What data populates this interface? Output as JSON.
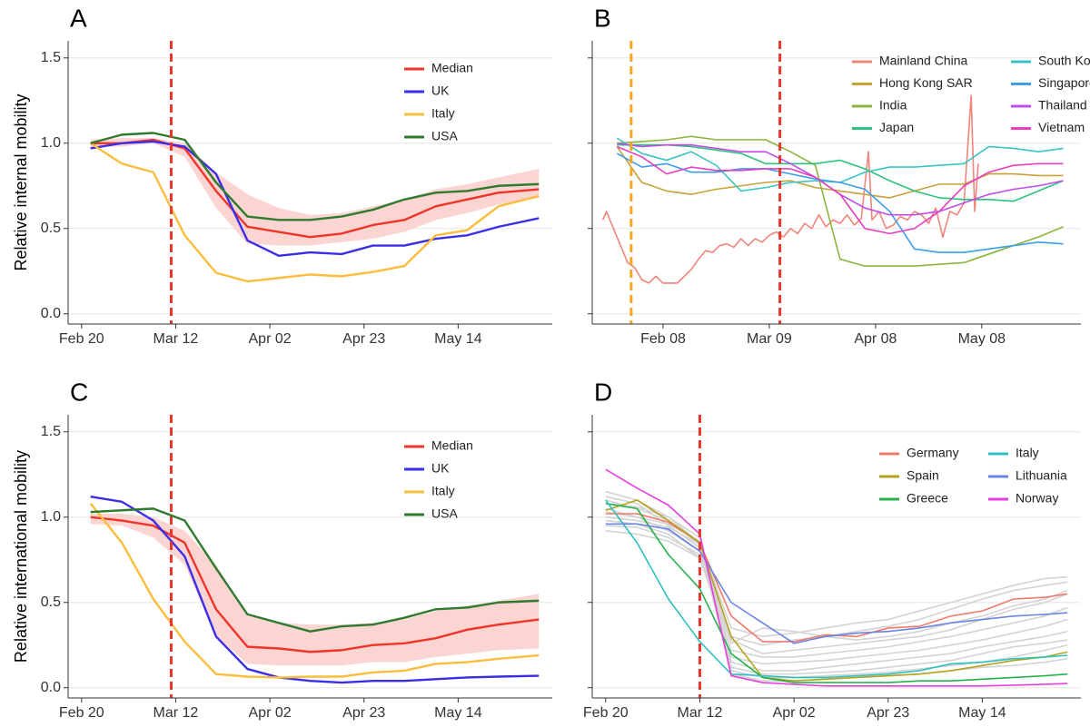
{
  "chart_data": [
    {
      "type": "line",
      "panel_label": "A",
      "ylabel": "Relative internal mobility",
      "legend": "top-right",
      "x": [
        "Feb 22",
        "Feb 29",
        "Mar 07",
        "Mar 14",
        "Mar 21",
        "Mar 28",
        "Apr 04",
        "Apr 11",
        "Apr 18",
        "Apr 25",
        "May 02",
        "May 09",
        "May 16",
        "May 23",
        "Jun 01"
      ],
      "band": {
        "color": "#fbd5d2",
        "lower": [
          0.98,
          0.98,
          1.0,
          0.92,
          0.62,
          0.41,
          0.4,
          0.4,
          0.42,
          0.44,
          0.48,
          0.55,
          0.59,
          0.64,
          0.68
        ],
        "upper": [
          1.02,
          1.03,
          1.03,
          1.0,
          0.83,
          0.7,
          0.62,
          0.58,
          0.59,
          0.63,
          0.67,
          0.73,
          0.76,
          0.8,
          0.85
        ]
      },
      "series": [
        {
          "name": "Median",
          "color": "#f0332b",
          "values": [
            1.0,
            1.0,
            1.02,
            0.97,
            0.72,
            0.51,
            0.48,
            0.45,
            0.47,
            0.52,
            0.55,
            0.63,
            0.67,
            0.71,
            0.73
          ]
        },
        {
          "name": "UK",
          "color": "#3a2ee8",
          "values": [
            0.97,
            1.0,
            1.01,
            0.98,
            0.82,
            0.43,
            0.34,
            0.36,
            0.35,
            0.4,
            0.4,
            0.44,
            0.46,
            0.51,
            0.56
          ]
        },
        {
          "name": "Italy",
          "color": "#fbbd3c",
          "values": [
            1.0,
            0.88,
            0.83,
            0.46,
            0.24,
            0.19,
            0.21,
            0.23,
            0.22,
            0.245,
            0.28,
            0.46,
            0.49,
            0.63,
            0.69
          ]
        },
        {
          "name": "USA",
          "color": "#2f7a2f",
          "values": [
            1.0,
            1.05,
            1.06,
            1.02,
            0.77,
            0.57,
            0.55,
            0.55,
            0.57,
            0.61,
            0.67,
            0.71,
            0.72,
            0.75,
            0.76
          ]
        }
      ],
      "vlines": [
        {
          "x": "Mar 11",
          "color": "#e8372c"
        }
      ],
      "xlim": [
        "Feb 17",
        "Jun 04"
      ],
      "xticks": [
        "Feb 20",
        "Mar 12",
        "Apr 02",
        "Apr 23",
        "May 14"
      ],
      "ylim": [
        -0.06,
        1.6
      ],
      "yticks": [
        {
          "value": 0,
          "label": "0.0"
        },
        0.5,
        {
          "value": 1,
          "label": "1.0"
        },
        1.5
      ],
      "grid": true
    },
    {
      "type": "line",
      "panel_label": "B",
      "legend": "top-right",
      "ytick_labels": false,
      "x": [
        "Jan 26",
        "Feb 02",
        "Feb 09",
        "Feb 16",
        "Feb 23",
        "Mar 01",
        "Mar 08",
        "Mar 15",
        "Mar 22",
        "Mar 29",
        "Apr 05",
        "Apr 12",
        "Apr 19",
        "Apr 26",
        "May 03",
        "May 10",
        "May 17",
        "May 24",
        "May 31"
      ],
      "series": [
        {
          "name": "Mainland China",
          "color": "#f0857a",
          "x": [
            "Jan 22",
            "Jan 23",
            "Jan 25",
            "Jan 27",
            "Jan 29",
            "Jan 31",
            "Feb 02",
            "Feb 04",
            "Feb 06",
            "Feb 08",
            "Feb 10",
            "Feb 12",
            "Feb 14",
            "Feb 16",
            "Feb 18",
            "Feb 20",
            "Feb 22",
            "Feb 24",
            "Feb 26",
            "Feb 28",
            "Mar 01",
            "Mar 03",
            "Mar 05",
            "Mar 07",
            "Mar 09",
            "Mar 11",
            "Mar 13",
            "Mar 15",
            "Mar 17",
            "Mar 19",
            "Mar 21",
            "Mar 23",
            "Mar 25",
            "Mar 27",
            "Mar 29",
            "Mar 31",
            "Apr 02",
            "Apr 04",
            "Apr 06",
            "Apr 07",
            "Apr 09",
            "Apr 11",
            "Apr 13",
            "Apr 15",
            "Apr 17",
            "Apr 19",
            "Apr 21",
            "Apr 23",
            "Apr 25",
            "Apr 27",
            "Apr 29",
            "May 01",
            "May 03",
            "May 05",
            "May 06",
            "May 07"
          ],
          "values": [
            0.55,
            0.6,
            0.5,
            0.4,
            0.3,
            0.27,
            0.2,
            0.18,
            0.22,
            0.18,
            0.18,
            0.18,
            0.22,
            0.26,
            0.32,
            0.37,
            0.36,
            0.4,
            0.41,
            0.39,
            0.44,
            0.4,
            0.44,
            0.42,
            0.46,
            0.48,
            0.45,
            0.5,
            0.47,
            0.53,
            0.5,
            0.58,
            0.51,
            0.55,
            0.53,
            0.58,
            0.52,
            0.56,
            0.95,
            0.55,
            0.6,
            0.5,
            0.52,
            0.57,
            0.55,
            0.6,
            0.58,
            0.53,
            0.62,
            0.45,
            0.6,
            0.58,
            0.65,
            1.28,
            0.6,
            0.88
          ]
        },
        {
          "name": "Hong Kong SAR",
          "color": "#c8a13a",
          "values": [
            0.98,
            0.77,
            0.72,
            0.7,
            0.73,
            0.75,
            0.77,
            0.78,
            0.74,
            0.72,
            0.7,
            0.68,
            0.72,
            0.76,
            0.76,
            0.82,
            0.82,
            0.81,
            0.81
          ]
        },
        {
          "name": "India",
          "color": "#8cb33b",
          "values": [
            1.0,
            1.01,
            1.02,
            1.04,
            1.02,
            1.02,
            1.02,
            0.95,
            0.87,
            0.32,
            0.28,
            0.28,
            0.28,
            0.29,
            0.3,
            0.35,
            0.4,
            0.45,
            0.51
          ]
        },
        {
          "name": "Japan",
          "color": "#2ec27e",
          "values": [
            0.99,
            0.99,
            0.99,
            0.98,
            0.96,
            0.94,
            0.88,
            0.88,
            0.88,
            0.9,
            0.85,
            0.78,
            0.72,
            0.68,
            0.67,
            0.67,
            0.66,
            0.72,
            0.78
          ]
        },
        {
          "name": "South Korea",
          "color": "#3bc4c4",
          "values": [
            1.03,
            0.94,
            0.9,
            0.95,
            0.87,
            0.72,
            0.74,
            0.77,
            0.78,
            0.77,
            0.83,
            0.86,
            0.86,
            0.87,
            0.88,
            0.98,
            0.97,
            0.95,
            0.97
          ]
        },
        {
          "name": "Singapore",
          "color": "#3a9ee8",
          "values": [
            0.94,
            0.86,
            0.88,
            0.83,
            0.83,
            0.85,
            0.85,
            0.82,
            0.79,
            0.77,
            0.73,
            0.6,
            0.38,
            0.36,
            0.36,
            0.38,
            0.4,
            0.42,
            0.41
          ]
        },
        {
          "name": "Thailand",
          "color": "#c04ce8",
          "values": [
            1.0,
            0.98,
            0.99,
            0.99,
            0.97,
            0.95,
            0.95,
            0.88,
            0.8,
            0.7,
            0.62,
            0.58,
            0.58,
            0.6,
            0.65,
            0.7,
            0.73,
            0.75,
            0.78
          ]
        },
        {
          "name": "Vietnam",
          "color": "#e83ec0",
          "values": [
            0.98,
            0.92,
            0.82,
            0.86,
            0.84,
            0.84,
            0.85,
            0.85,
            0.8,
            0.7,
            0.5,
            0.47,
            0.5,
            0.6,
            0.75,
            0.83,
            0.87,
            0.88,
            0.88
          ]
        }
      ],
      "vlines": [
        {
          "x": "Jan 30",
          "color": "#f5a623"
        },
        {
          "x": "Mar 12",
          "color": "#e8372c"
        }
      ],
      "xlim": [
        "Jan 19",
        "Jun 05"
      ],
      "xticks": [
        "Feb 08",
        "Mar 09",
        "Apr 08",
        "May 08"
      ],
      "ylim": [
        -0.06,
        1.6
      ],
      "yticks": [
        0,
        0.5,
        1,
        1.5
      ],
      "grid": true
    },
    {
      "type": "line",
      "panel_label": "C",
      "ylabel": "Relative international mobility",
      "legend": "top-right",
      "x": [
        "Feb 22",
        "Feb 29",
        "Mar 07",
        "Mar 14",
        "Mar 21",
        "Mar 28",
        "Apr 04",
        "Apr 11",
        "Apr 18",
        "Apr 25",
        "May 02",
        "May 09",
        "May 16",
        "May 23",
        "Jun 01"
      ],
      "band": {
        "color": "#fbd5d2",
        "lower": [
          0.96,
          0.95,
          0.88,
          0.72,
          0.3,
          0.14,
          0.13,
          0.13,
          0.13,
          0.15,
          0.15,
          0.18,
          0.2,
          0.22,
          0.23
        ],
        "upper": [
          1.02,
          1.02,
          1.0,
          0.92,
          0.72,
          0.42,
          0.38,
          0.37,
          0.37,
          0.38,
          0.4,
          0.45,
          0.48,
          0.51,
          0.55
        ]
      },
      "series": [
        {
          "name": "Median",
          "color": "#f0332b",
          "values": [
            1.0,
            0.98,
            0.95,
            0.85,
            0.46,
            0.24,
            0.23,
            0.21,
            0.22,
            0.25,
            0.26,
            0.29,
            0.34,
            0.37,
            0.4
          ]
        },
        {
          "name": "UK",
          "color": "#3a2ee8",
          "values": [
            1.12,
            1.09,
            0.98,
            0.77,
            0.3,
            0.11,
            0.06,
            0.04,
            0.03,
            0.04,
            0.04,
            0.05,
            0.06,
            0.065,
            0.07
          ]
        },
        {
          "name": "Italy",
          "color": "#fbbd3c",
          "values": [
            1.08,
            0.85,
            0.52,
            0.27,
            0.08,
            0.065,
            0.06,
            0.065,
            0.065,
            0.09,
            0.1,
            0.14,
            0.15,
            0.17,
            0.19
          ]
        },
        {
          "name": "USA",
          "color": "#2f7a2f",
          "values": [
            1.03,
            1.04,
            1.05,
            0.98,
            0.7,
            0.43,
            0.38,
            0.33,
            0.36,
            0.37,
            0.41,
            0.46,
            0.47,
            0.5,
            0.51
          ]
        }
      ],
      "vlines": [
        {
          "x": "Mar 11",
          "color": "#e8372c"
        }
      ],
      "xlim": [
        "Feb 17",
        "Jun 04"
      ],
      "xticks": [
        "Feb 20",
        "Mar 12",
        "Apr 02",
        "Apr 23",
        "May 14"
      ],
      "ylim": [
        -0.06,
        1.6
      ],
      "yticks": [
        {
          "value": 0,
          "label": "0.0"
        },
        0.5,
        {
          "value": 1,
          "label": "1.0"
        },
        1.5
      ],
      "grid": true
    },
    {
      "type": "line",
      "panel_label": "D",
      "legend": "top-right",
      "ytick_labels": false,
      "x": [
        "Feb 20",
        "Feb 27",
        "Mar 05",
        "Mar 12",
        "Mar 19",
        "Mar 26",
        "Apr 02",
        "Apr 09",
        "Apr 16",
        "Apr 23",
        "Apr 30",
        "May 07",
        "May 14",
        "May 21",
        "May 28",
        "Jun 02"
      ],
      "background_series": {
        "color": "#d3d3d3",
        "lines": [
          [
            1.15,
            1.1,
            1.0,
            0.85,
            0.35,
            0.3,
            0.32,
            0.35,
            0.38,
            0.4,
            0.45,
            0.5,
            0.55,
            0.6,
            0.64,
            0.65
          ],
          [
            1.12,
            1.08,
            0.95,
            0.82,
            0.3,
            0.25,
            0.28,
            0.3,
            0.33,
            0.36,
            0.4,
            0.46,
            0.52,
            0.57,
            0.6,
            0.62
          ],
          [
            1.05,
            1.0,
            0.92,
            0.8,
            0.28,
            0.2,
            0.22,
            0.24,
            0.26,
            0.28,
            0.3,
            0.34,
            0.4,
            0.46,
            0.5,
            0.55
          ],
          [
            0.98,
            0.96,
            0.9,
            0.76,
            0.22,
            0.18,
            0.18,
            0.2,
            0.22,
            0.24,
            0.27,
            0.3,
            0.34,
            0.38,
            0.42,
            0.47
          ],
          [
            0.95,
            0.94,
            0.88,
            0.78,
            0.18,
            0.14,
            0.15,
            0.16,
            0.18,
            0.2,
            0.22,
            0.25,
            0.28,
            0.32,
            0.36,
            0.4
          ],
          [
            1.08,
            1.06,
            1.0,
            0.88,
            0.15,
            0.1,
            0.1,
            0.12,
            0.14,
            0.16,
            0.18,
            0.2,
            0.24,
            0.27,
            0.3,
            0.33
          ],
          [
            1.0,
            0.98,
            0.94,
            0.84,
            0.12,
            0.08,
            0.08,
            0.09,
            0.1,
            0.12,
            0.14,
            0.16,
            0.2,
            0.24,
            0.26,
            0.28
          ],
          [
            1.03,
            1.0,
            0.96,
            0.86,
            0.1,
            0.06,
            0.06,
            0.07,
            0.08,
            0.09,
            0.11,
            0.13,
            0.15,
            0.18,
            0.22,
            0.25
          ],
          [
            0.92,
            0.9,
            0.86,
            0.76,
            0.26,
            0.35,
            0.33,
            0.3,
            0.28,
            0.3,
            0.33,
            0.38,
            0.42,
            0.48,
            0.52,
            0.57
          ],
          [
            1.1,
            1.05,
            0.98,
            0.84,
            0.08,
            0.04,
            0.04,
            0.05,
            0.06,
            0.07,
            0.08,
            0.1,
            0.12,
            0.13,
            0.15,
            0.17
          ]
        ]
      },
      "series": [
        {
          "name": "Germany",
          "color": "#f07a6a",
          "values": [
            1.02,
            1.02,
            0.97,
            0.85,
            0.42,
            0.27,
            0.27,
            0.31,
            0.3,
            0.35,
            0.36,
            0.42,
            0.45,
            0.52,
            0.53,
            0.55
          ]
        },
        {
          "name": "Spain",
          "color": "#b5a21c",
          "values": [
            1.04,
            1.1,
            0.98,
            0.85,
            0.3,
            0.06,
            0.04,
            0.05,
            0.06,
            0.07,
            0.08,
            0.1,
            0.13,
            0.16,
            0.18,
            0.21
          ]
        },
        {
          "name": "Greece",
          "color": "#25b34c",
          "values": [
            1.08,
            1.05,
            0.78,
            0.58,
            0.2,
            0.06,
            0.03,
            0.03,
            0.03,
            0.03,
            0.04,
            0.04,
            0.05,
            0.06,
            0.07,
            0.08
          ]
        },
        {
          "name": "Italy",
          "color": "#2fc0c0",
          "values": [
            1.1,
            0.85,
            0.52,
            0.27,
            0.08,
            0.07,
            0.06,
            0.06,
            0.07,
            0.08,
            0.1,
            0.14,
            0.15,
            0.17,
            0.18,
            0.19
          ]
        },
        {
          "name": "Lithuania",
          "color": "#6b84e8",
          "values": [
            0.96,
            0.96,
            0.93,
            0.8,
            0.5,
            0.38,
            0.26,
            0.3,
            0.32,
            0.33,
            0.35,
            0.38,
            0.4,
            0.42,
            0.43,
            0.44
          ]
        },
        {
          "name": "Norway",
          "color": "#e83ee0",
          "values": [
            1.28,
            1.17,
            1.07,
            0.9,
            0.07,
            0.03,
            0.02,
            0.01,
            0.01,
            0.01,
            0.01,
            0.01,
            0.01,
            0.015,
            0.02,
            0.025
          ]
        }
      ],
      "vlines": [
        {
          "x": "Mar 12",
          "color": "#e8372c"
        }
      ],
      "xlim": [
        "Feb 17",
        "Jun 05"
      ],
      "xticks": [
        "Feb 20",
        "Mar 12",
        "Apr 02",
        "Apr 23",
        "May 14"
      ],
      "ylim": [
        -0.06,
        1.6
      ],
      "yticks": [
        0,
        0.5,
        1,
        1.5
      ],
      "grid": true
    }
  ]
}
